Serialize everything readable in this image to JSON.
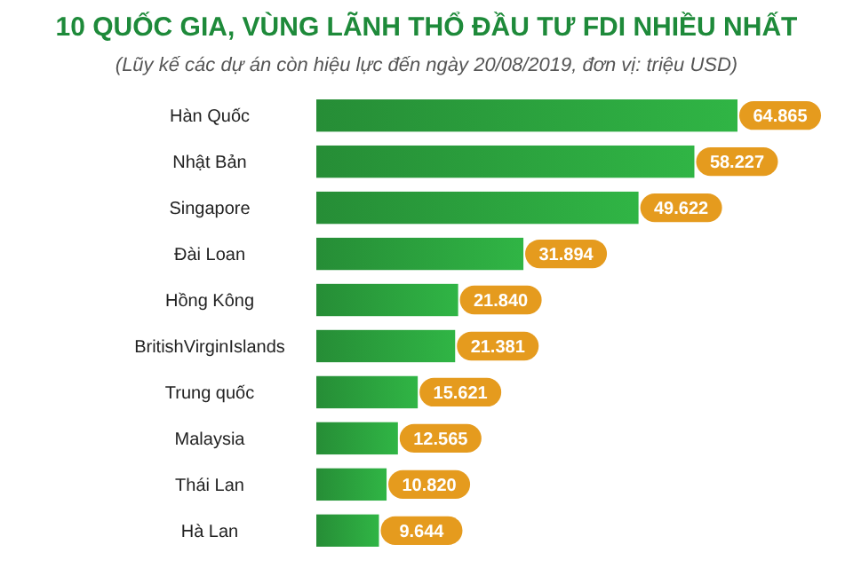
{
  "chart_data": {
    "type": "bar",
    "orientation": "horizontal",
    "title": "10 QUỐC GIA, VÙNG LÃNH THỔ ĐẦU TƯ FDI NHIỀU NHẤT",
    "subtitle": "(Lũy kế các dự án còn hiệu lực đến ngày 20/08/2019, đơn vị: triệu USD)",
    "categories": [
      "Hàn Quốc",
      "Nhật Bản",
      "Singapore",
      "Đài Loan",
      "Hồng Kông",
      "BritishVirginIslands",
      "Trung quốc",
      "Malaysia",
      "Thái Lan",
      "Hà Lan"
    ],
    "values": [
      64865,
      58227,
      49622,
      31894,
      21840,
      21381,
      15621,
      12565,
      10820,
      9644
    ],
    "value_labels": [
      "64.865",
      "58.227",
      "49.622",
      "31.894",
      "21.840",
      "21.381",
      "15.621",
      "12.565",
      "10.820",
      "9.644"
    ],
    "color": "#2a9d3c"
  }
}
